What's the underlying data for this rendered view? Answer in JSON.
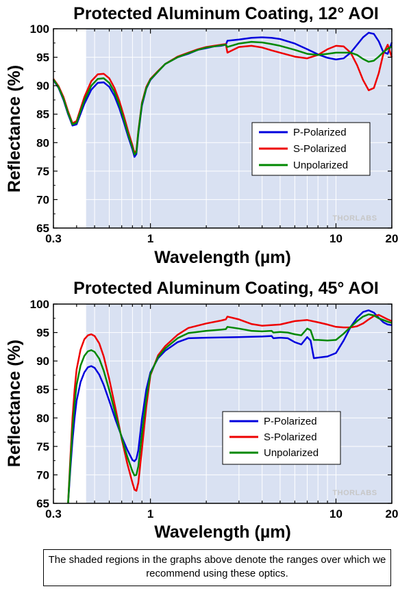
{
  "chart_data": [
    {
      "type": "line",
      "title": "Protected Aluminum Coating, 12° AOI",
      "xlabel": "Wavelength (µm)",
      "ylabel": "Reflectance (%)",
      "xscale": "log",
      "xlim": [
        0.3,
        20
      ],
      "ylim": [
        65,
        100
      ],
      "xticks": [
        "0.3",
        "1",
        "10",
        "20"
      ],
      "yticks": [
        "65",
        "70",
        "75",
        "80",
        "85",
        "90",
        "95",
        "100"
      ],
      "shaded_range": [
        0.45,
        20
      ],
      "legend_position": "center-right",
      "watermark": "THORLABS",
      "series": [
        {
          "name": "P-Polarized",
          "color": "#0000dd",
          "x": [
            0.3,
            0.32,
            0.34,
            0.36,
            0.38,
            0.4,
            0.44,
            0.48,
            0.52,
            0.56,
            0.6,
            0.64,
            0.68,
            0.72,
            0.76,
            0.8,
            0.82,
            0.84,
            0.86,
            0.9,
            0.95,
            1.0,
            1.1,
            1.2,
            1.4,
            1.6,
            1.8,
            2.0,
            2.2,
            2.4,
            2.55,
            2.6,
            3.0,
            3.5,
            4.0,
            4.5,
            5.0,
            6.0,
            7.0,
            8.0,
            9.0,
            10.0,
            11.0,
            12.0,
            13.0,
            14.0,
            15.0,
            16.0,
            17.0,
            18.0,
            19.0,
            20.0
          ],
          "y": [
            91.0,
            89.6,
            87.5,
            85.0,
            83.0,
            83.2,
            86.8,
            89.3,
            90.5,
            90.6,
            89.8,
            88.2,
            86.0,
            83.5,
            81.0,
            78.8,
            77.5,
            78.0,
            81.5,
            86.5,
            89.5,
            91.0,
            92.5,
            93.8,
            95.0,
            95.6,
            96.3,
            96.6,
            96.9,
            97.0,
            97.2,
            97.9,
            98.1,
            98.4,
            98.5,
            98.4,
            98.2,
            97.4,
            96.4,
            95.5,
            94.9,
            94.6,
            94.8,
            95.8,
            97.2,
            98.5,
            99.3,
            99.1,
            97.8,
            95.9,
            95.6,
            97.6
          ]
        },
        {
          "name": "S-Polarized",
          "color": "#ee0000",
          "x": [
            0.3,
            0.32,
            0.34,
            0.36,
            0.38,
            0.4,
            0.44,
            0.48,
            0.52,
            0.56,
            0.6,
            0.64,
            0.68,
            0.72,
            0.76,
            0.8,
            0.82,
            0.84,
            0.86,
            0.9,
            0.95,
            1.0,
            1.1,
            1.2,
            1.4,
            1.6,
            1.8,
            2.0,
            2.2,
            2.4,
            2.55,
            2.6,
            3.0,
            3.5,
            4.0,
            4.5,
            5.0,
            6.0,
            7.0,
            8.0,
            9.0,
            10.0,
            11.0,
            12.0,
            13.0,
            14.0,
            15.0,
            16.0,
            17.0,
            18.0,
            19.0,
            20.0
          ],
          "y": [
            91.2,
            89.9,
            88.0,
            85.5,
            83.4,
            83.8,
            88.0,
            90.8,
            92.0,
            92.1,
            91.3,
            89.6,
            87.3,
            84.6,
            81.9,
            79.5,
            78.2,
            78.6,
            82.0,
            87.0,
            89.8,
            91.2,
            92.6,
            93.8,
            95.1,
            95.8,
            96.4,
            96.8,
            97.0,
            97.2,
            97.3,
            95.8,
            96.8,
            97.0,
            96.7,
            96.2,
            95.8,
            95.1,
            94.8,
            95.4,
            96.4,
            97.0,
            96.9,
            95.8,
            93.6,
            91.0,
            89.2,
            89.6,
            92.2,
            95.6,
            97.2,
            95.0
          ]
        },
        {
          "name": "Unpolarized",
          "color": "#008800",
          "x": [
            0.3,
            0.32,
            0.34,
            0.36,
            0.38,
            0.4,
            0.44,
            0.48,
            0.52,
            0.56,
            0.6,
            0.64,
            0.68,
            0.72,
            0.76,
            0.8,
            0.82,
            0.84,
            0.86,
            0.9,
            0.95,
            1.0,
            1.1,
            1.2,
            1.4,
            1.6,
            1.8,
            2.0,
            2.2,
            2.4,
            2.55,
            2.6,
            3.0,
            3.5,
            4.0,
            4.5,
            5.0,
            6.0,
            7.0,
            8.0,
            9.0,
            10.0,
            11.0,
            12.0,
            13.0,
            14.0,
            15.0,
            16.0,
            17.0,
            18.0,
            19.0,
            20.0
          ],
          "y": [
            91.1,
            89.7,
            87.7,
            85.2,
            83.2,
            83.5,
            87.4,
            90.0,
            91.2,
            91.3,
            90.5,
            88.9,
            86.6,
            84.0,
            81.4,
            79.1,
            77.9,
            78.3,
            81.8,
            86.8,
            89.6,
            91.1,
            92.5,
            93.8,
            95.0,
            95.7,
            96.3,
            96.7,
            96.9,
            97.1,
            97.2,
            96.8,
            97.4,
            97.7,
            97.6,
            97.3,
            97.0,
            96.3,
            95.6,
            95.4,
            95.6,
            95.8,
            95.8,
            95.8,
            95.4,
            94.7,
            94.2,
            94.4,
            95.1,
            95.9,
            96.5,
            96.9
          ]
        }
      ]
    },
    {
      "type": "line",
      "title": "Protected Aluminum Coating, 45° AOI",
      "xlabel": "Wavelength (µm)",
      "ylabel": "Reflectance (%)",
      "xscale": "log",
      "xlim": [
        0.3,
        20
      ],
      "ylim": [
        65,
        100
      ],
      "xticks": [
        "0.3",
        "1",
        "10",
        "20"
      ],
      "yticks": [
        "65",
        "70",
        "75",
        "80",
        "85",
        "90",
        "95",
        "100"
      ],
      "shaded_range": [
        0.45,
        20
      ],
      "legend_position": "bottom-center",
      "watermark": "THORLABS",
      "series": [
        {
          "name": "P-Polarized",
          "color": "#0000dd",
          "x": [
            0.36,
            0.37,
            0.38,
            0.39,
            0.4,
            0.42,
            0.44,
            0.46,
            0.48,
            0.5,
            0.53,
            0.56,
            0.6,
            0.65,
            0.7,
            0.75,
            0.8,
            0.82,
            0.84,
            0.86,
            0.9,
            0.95,
            1.0,
            1.1,
            1.2,
            1.4,
            1.6,
            2.0,
            3.0,
            4.0,
            4.5,
            4.6,
            5.0,
            5.5,
            6.0,
            6.5,
            7.0,
            7.3,
            7.6,
            8.0,
            9.0,
            10.0,
            11.0,
            12.0,
            13.0,
            14.0,
            15.0,
            16.0,
            17.0,
            18.0,
            19.0,
            20.0
          ],
          "y": [
            65.0,
            71.0,
            76.0,
            80.0,
            83.0,
            86.3,
            88.0,
            88.9,
            89.1,
            88.8,
            87.6,
            85.8,
            83.0,
            79.6,
            76.7,
            74.4,
            72.6,
            72.4,
            72.8,
            74.3,
            79.8,
            85.0,
            88.0,
            90.5,
            91.8,
            93.3,
            94.0,
            94.1,
            94.2,
            94.3,
            94.4,
            94.0,
            94.1,
            94.0,
            93.3,
            92.9,
            94.2,
            93.6,
            90.5,
            90.6,
            90.8,
            91.4,
            93.6,
            96.0,
            97.6,
            98.6,
            98.9,
            98.5,
            97.6,
            96.8,
            96.4,
            96.3
          ]
        },
        {
          "name": "S-Polarized",
          "color": "#ee0000",
          "x": [
            0.36,
            0.37,
            0.38,
            0.39,
            0.4,
            0.42,
            0.44,
            0.46,
            0.48,
            0.5,
            0.53,
            0.56,
            0.6,
            0.65,
            0.7,
            0.75,
            0.8,
            0.82,
            0.84,
            0.86,
            0.9,
            0.95,
            1.0,
            1.1,
            1.2,
            1.4,
            1.6,
            2.0,
            2.4,
            2.55,
            2.6,
            3.0,
            3.5,
            4.0,
            5.0,
            6.0,
            7.0,
            8.0,
            9.0,
            10.0,
            11.0,
            12.0,
            13.0,
            14.0,
            15.0,
            16.0,
            17.0,
            18.0,
            19.0,
            20.0
          ],
          "y": [
            65.0,
            73.0,
            80.0,
            85.0,
            88.5,
            92.0,
            93.8,
            94.5,
            94.7,
            94.4,
            93.1,
            90.8,
            86.8,
            81.5,
            76.3,
            72.0,
            68.6,
            67.4,
            67.2,
            68.6,
            74.5,
            82.0,
            87.5,
            91.0,
            92.6,
            94.6,
            95.8,
            96.6,
            97.1,
            97.3,
            97.8,
            97.3,
            96.5,
            96.2,
            96.4,
            97.0,
            97.2,
            96.8,
            96.4,
            96.0,
            95.9,
            95.9,
            96.1,
            96.6,
            97.3,
            97.9,
            98.1,
            97.7,
            97.3,
            97.0
          ]
        },
        {
          "name": "Unpolarized",
          "color": "#008800",
          "x": [
            0.36,
            0.37,
            0.38,
            0.39,
            0.4,
            0.42,
            0.44,
            0.46,
            0.48,
            0.5,
            0.53,
            0.56,
            0.6,
            0.65,
            0.7,
            0.75,
            0.8,
            0.82,
            0.84,
            0.86,
            0.9,
            0.95,
            1.0,
            1.1,
            1.2,
            1.4,
            1.6,
            2.0,
            2.4,
            2.55,
            2.6,
            3.0,
            3.5,
            4.0,
            4.5,
            4.6,
            5.0,
            5.5,
            6.0,
            6.5,
            7.0,
            7.3,
            7.6,
            8.0,
            9.0,
            10.0,
            11.0,
            12.0,
            13.0,
            14.0,
            15.0,
            16.0,
            17.0,
            18.0,
            19.0,
            20.0
          ],
          "y": [
            65.0,
            72.0,
            78.0,
            82.5,
            85.8,
            89.2,
            90.9,
            91.7,
            91.9,
            91.6,
            90.4,
            88.3,
            84.9,
            80.5,
            76.5,
            73.2,
            70.6,
            69.9,
            70.0,
            71.5,
            77.2,
            83.5,
            87.7,
            90.7,
            92.2,
            94.0,
            94.9,
            95.3,
            95.5,
            95.6,
            96.0,
            95.7,
            95.3,
            95.2,
            95.3,
            95.0,
            95.1,
            95.0,
            94.7,
            94.5,
            95.7,
            95.4,
            93.7,
            93.7,
            93.6,
            93.7,
            94.8,
            96.0,
            97.0,
            97.8,
            98.2,
            98.0,
            97.5,
            97.2,
            96.9,
            96.7
          ]
        }
      ]
    }
  ],
  "note": "The shaded regions in the graphs above denote the ranges over which we recommend using these optics."
}
